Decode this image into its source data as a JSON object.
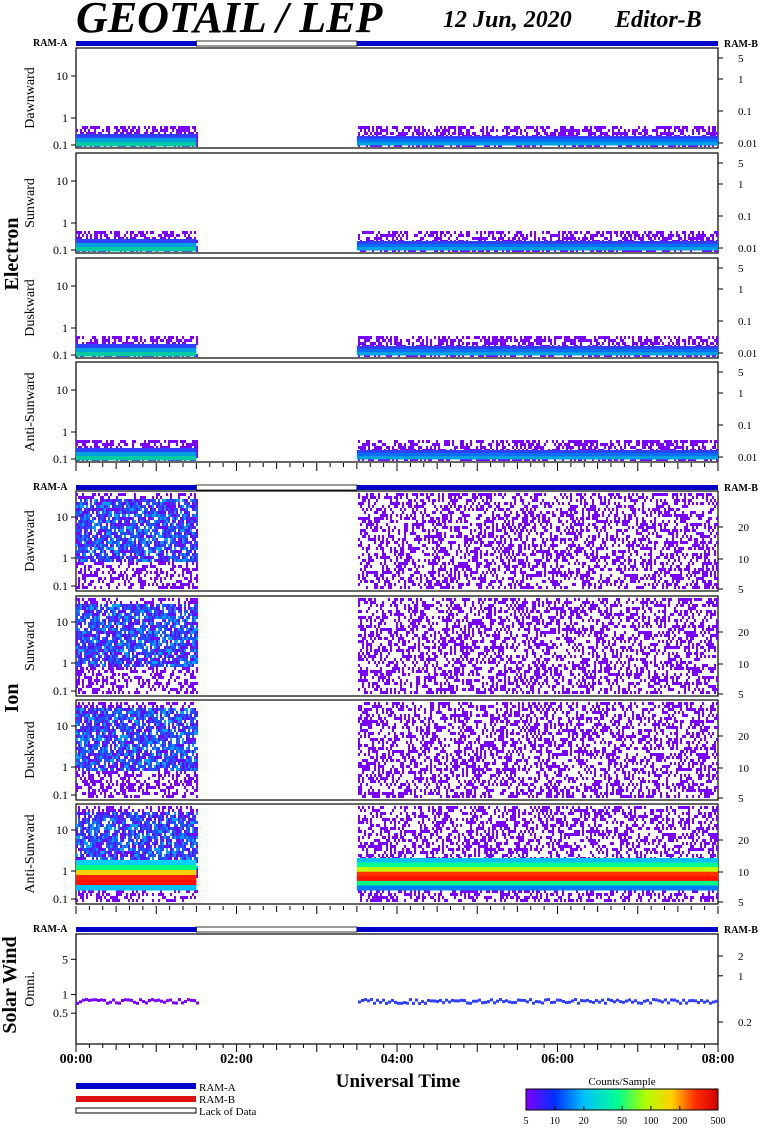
{
  "header": {
    "title": "GEOTAIL / LEP",
    "date": "12 Jun, 2020",
    "editor": "Editor-B"
  },
  "bar_labels": {
    "left": "RAM-A",
    "right": "RAM-B"
  },
  "groups": [
    {
      "name": "Electron",
      "panel_labels": [
        "Dawnward",
        "Sunward",
        "Duskward",
        "Anti-Sunward"
      ]
    },
    {
      "name": "Ion",
      "panel_labels": [
        "Dawnward",
        "Sunward",
        "Duskward",
        "Anti-Sunward"
      ]
    },
    {
      "name": "Solar Wind",
      "panel_labels": [
        "Omni."
      ]
    }
  ],
  "colors": {
    "ram_a": "#0000c8",
    "ram_b": "#e01010",
    "colorbar_stops": [
      "#8000ff",
      "#0030ff",
      "#00c0ff",
      "#00ff90",
      "#b0ff00",
      "#ffd000",
      "#ff3000",
      "#d00000"
    ]
  },
  "chart_data": {
    "type": "heatmap",
    "x_axis": {
      "label": "Universal Time",
      "range": [
        "00:00",
        "08:00"
      ],
      "tick_labels": [
        "00:00",
        "02:00",
        "04:00",
        "06:00",
        "08:00"
      ]
    },
    "data_gaps": [
      {
        "from": "01:30",
        "to": "03:30"
      }
    ],
    "mode_bar": [
      {
        "from": "00:00",
        "to": "01:30",
        "mode": "RAM-A"
      },
      {
        "from": "01:30",
        "to": "03:30",
        "mode": "Lack of Data"
      },
      {
        "from": "03:30",
        "to": "08:00",
        "mode": "RAM-A"
      }
    ],
    "electron_axes": {
      "left_tick_labels": [
        "10",
        "1",
        "0.1"
      ],
      "right_tick_labels": [
        "5",
        "1",
        "0.1",
        "0.01"
      ]
    },
    "ion_axes": {
      "left_tick_labels": [
        "10",
        "1",
        "0.1"
      ],
      "right_tick_labels": [
        "20",
        "10",
        "5"
      ]
    },
    "solar_wind_axes": {
      "left_tick_labels": [
        "5",
        "1",
        "0.5"
      ],
      "right_tick_labels": [
        "2",
        "1",
        "0.2"
      ]
    },
    "colorbar": {
      "title": "Counts/Sample",
      "tick_labels": [
        "5",
        "10",
        "20",
        "50",
        "100",
        "200",
        "500"
      ],
      "scale": "log",
      "range": [
        5,
        500
      ]
    }
  },
  "legend": [
    {
      "label": "RAM-A",
      "key": "ram_a"
    },
    {
      "label": "RAM-B",
      "key": "ram_b"
    },
    {
      "label": "Lack of Data",
      "key": "gap"
    }
  ]
}
